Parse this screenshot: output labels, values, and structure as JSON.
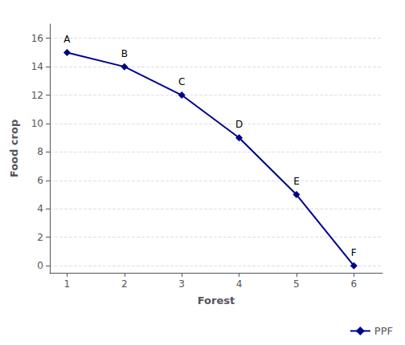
{
  "chart_data": {
    "type": "line",
    "x": [
      1,
      2,
      3,
      4,
      5,
      6
    ],
    "series": [
      {
        "name": "PPF",
        "color": "#00008B",
        "marker": "diamond",
        "values": [
          15,
          14,
          12,
          9,
          5,
          0
        ],
        "labels": [
          "A",
          "B",
          "C",
          "D",
          "E",
          "F"
        ]
      }
    ],
    "xlabel": "Forest",
    "ylabel": "Food crop",
    "xlim": [
      0.7,
      6.5
    ],
    "ylim": [
      -0.5,
      17
    ],
    "xticks": [
      1,
      2,
      3,
      4,
      5,
      6
    ],
    "yticks": [
      0,
      2,
      4,
      6,
      8,
      10,
      12,
      14,
      16
    ],
    "grid": "y",
    "legend": "lower right"
  }
}
